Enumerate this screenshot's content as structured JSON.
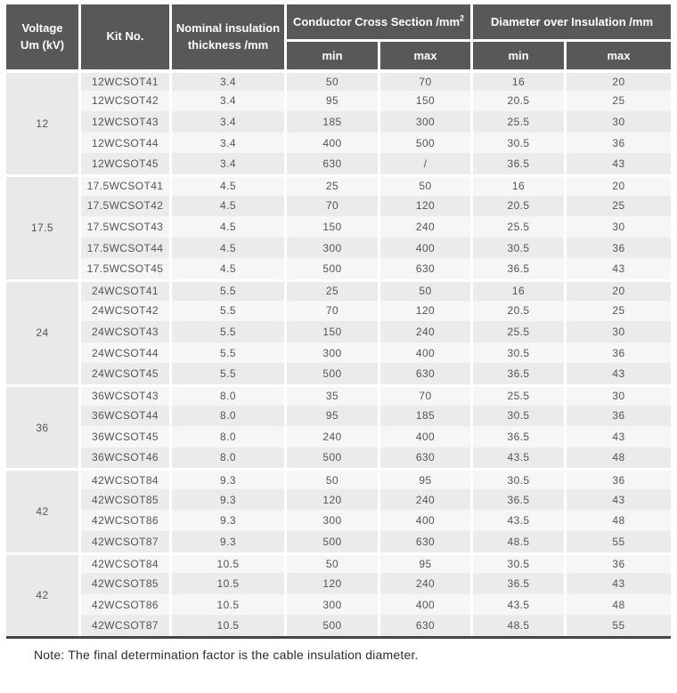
{
  "header": {
    "voltage": "Voltage\nUm (kV)",
    "kit": "Kit No.",
    "nominal": "Nominal insulation\nthickness /mm",
    "conductor_group": "Conductor Cross Section /mm",
    "conductor_sup": "2",
    "diameter_group": "Diameter over Insulation /mm",
    "min": "min",
    "max": "max"
  },
  "groups": [
    {
      "voltage": "12",
      "rows": [
        [
          "12WCSOT41",
          "3.4",
          "50",
          "70",
          "16",
          "20"
        ],
        [
          "12WCSOT42",
          "3.4",
          "95",
          "150",
          "20.5",
          "25"
        ],
        [
          "12WCSOT43",
          "3.4",
          "185",
          "300",
          "25.5",
          "30"
        ],
        [
          "12WCSOT44",
          "3.4",
          "400",
          "500",
          "30.5",
          "36"
        ],
        [
          "12WCSOT45",
          "3.4",
          "630",
          "/",
          "36.5",
          "43"
        ]
      ]
    },
    {
      "voltage": "17.5",
      "rows": [
        [
          "17.5WCSOT41",
          "4.5",
          "25",
          "50",
          "16",
          "20"
        ],
        [
          "17.5WCSOT42",
          "4.5",
          "70",
          "120",
          "20.5",
          "25"
        ],
        [
          "17.5WCSOT43",
          "4.5",
          "150",
          "240",
          "25.5",
          "30"
        ],
        [
          "17.5WCSOT44",
          "4.5",
          "300",
          "400",
          "30.5",
          "36"
        ],
        [
          "17.5WCSOT45",
          "4.5",
          "500",
          "630",
          "36.5",
          "43"
        ]
      ]
    },
    {
      "voltage": "24",
      "rows": [
        [
          "24WCSOT41",
          "5.5",
          "25",
          "50",
          "16",
          "20"
        ],
        [
          "24WCSOT42",
          "5.5",
          "70",
          "120",
          "20.5",
          "25"
        ],
        [
          "24WCSOT43",
          "5.5",
          "150",
          "240",
          "25.5",
          "30"
        ],
        [
          "24WCSOT44",
          "5.5",
          "300",
          "400",
          "30.5",
          "36"
        ],
        [
          "24WCSOT45",
          "5.5",
          "500",
          "630",
          "36.5",
          "43"
        ]
      ]
    },
    {
      "voltage": "36",
      "rows": [
        [
          "36WCSOT43",
          "8.0",
          "35",
          "70",
          "25.5",
          "30"
        ],
        [
          "36WCSOT44",
          "8.0",
          "95",
          "185",
          "30.5",
          "36"
        ],
        [
          "36WCSOT45",
          "8.0",
          "240",
          "400",
          "36.5",
          "43"
        ],
        [
          "36WCSOT46",
          "8.0",
          "500",
          "630",
          "43.5",
          "48"
        ]
      ]
    },
    {
      "voltage": "42",
      "rows": [
        [
          "42WCSOT84",
          "9.3",
          "50",
          "95",
          "30.5",
          "36"
        ],
        [
          "42WCSOT85",
          "9.3",
          "120",
          "240",
          "36.5",
          "43"
        ],
        [
          "42WCSOT86",
          "9.3",
          "300",
          "400",
          "43.5",
          "48"
        ],
        [
          "42WCSOT87",
          "9.3",
          "500",
          "630",
          "48.5",
          "55"
        ]
      ]
    },
    {
      "voltage": "42",
      "rows": [
        [
          "42WCSOT84",
          "10.5",
          "50",
          "95",
          "30.5",
          "36"
        ],
        [
          "42WCSOT85",
          "10.5",
          "120",
          "240",
          "36.5",
          "43"
        ],
        [
          "42WCSOT86",
          "10.5",
          "300",
          "400",
          "43.5",
          "48"
        ],
        [
          "42WCSOT87",
          "10.5",
          "500",
          "630",
          "48.5",
          "55"
        ]
      ]
    }
  ],
  "note": "Note: The final determination factor is the cable insulation diameter.",
  "colors": {
    "header_bg": "#5a5757",
    "header_text": "#ffffff",
    "row_odd": "#ebebeb",
    "row_even": "#f6f6f6",
    "voltage_cell": "#e9e9e9",
    "bottom_border": "#474443"
  }
}
